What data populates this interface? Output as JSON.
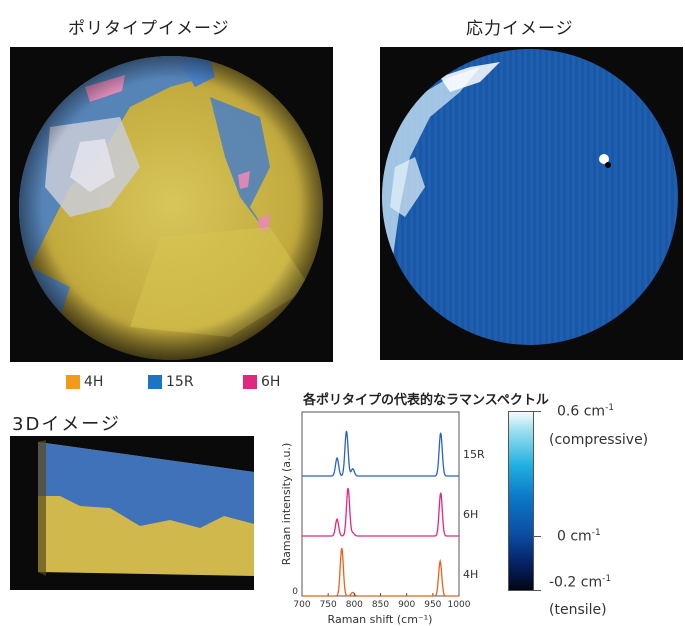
{
  "titles": {
    "polytype": "ポリタイプイメージ",
    "stress": "応力イメージ",
    "image3d": "3Dイメージ"
  },
  "legend": [
    {
      "label": "4H",
      "color": "#f39a1a"
    },
    {
      "label": "15R",
      "color": "#1e74c0"
    },
    {
      "label": "6H",
      "color": "#e0297c"
    }
  ],
  "colorbar": {
    "top_value": "0.6 cm",
    "top_unit_exp": "-1",
    "top_note": "(compressive)",
    "mid_value": "0 cm",
    "mid_unit_exp": "-1",
    "bottom_value": "-0.2 cm",
    "bottom_unit_exp": "-1",
    "bottom_note": "(tensile)"
  },
  "chart_data": {
    "type": "line",
    "title": "各ポリタイプの代表的なラマンスペクトル",
    "xlabel": "Raman shift (cm⁻¹)",
    "ylabel": "Raman intensity (a.u.)",
    "xlim": [
      700,
      1000
    ],
    "x_ticks": [
      700,
      750,
      800,
      850,
      900,
      950,
      1000
    ],
    "y_tick_zero": "0",
    "series": [
      {
        "name": "15R",
        "color": "#2a62c9",
        "offset": 2.0,
        "peaks": [
          [
            767,
            0.3,
            3
          ],
          [
            785,
            0.75,
            3
          ],
          [
            797,
            0.12,
            3
          ],
          [
            965,
            0.72,
            3
          ]
        ]
      },
      {
        "name": "6H",
        "color": "#e0297c",
        "offset": 1.0,
        "peaks": [
          [
            767,
            0.28,
            3
          ],
          [
            788,
            0.8,
            3
          ],
          [
            797,
            0.05,
            3
          ],
          [
            965,
            0.72,
            3
          ]
        ]
      },
      {
        "name": "4H",
        "color": "#e8641c",
        "offset": 0.0,
        "peaks": [
          [
            776,
            0.8,
            3
          ],
          [
            797,
            0.06,
            3
          ],
          [
            964,
            0.58,
            3
          ]
        ]
      }
    ]
  }
}
